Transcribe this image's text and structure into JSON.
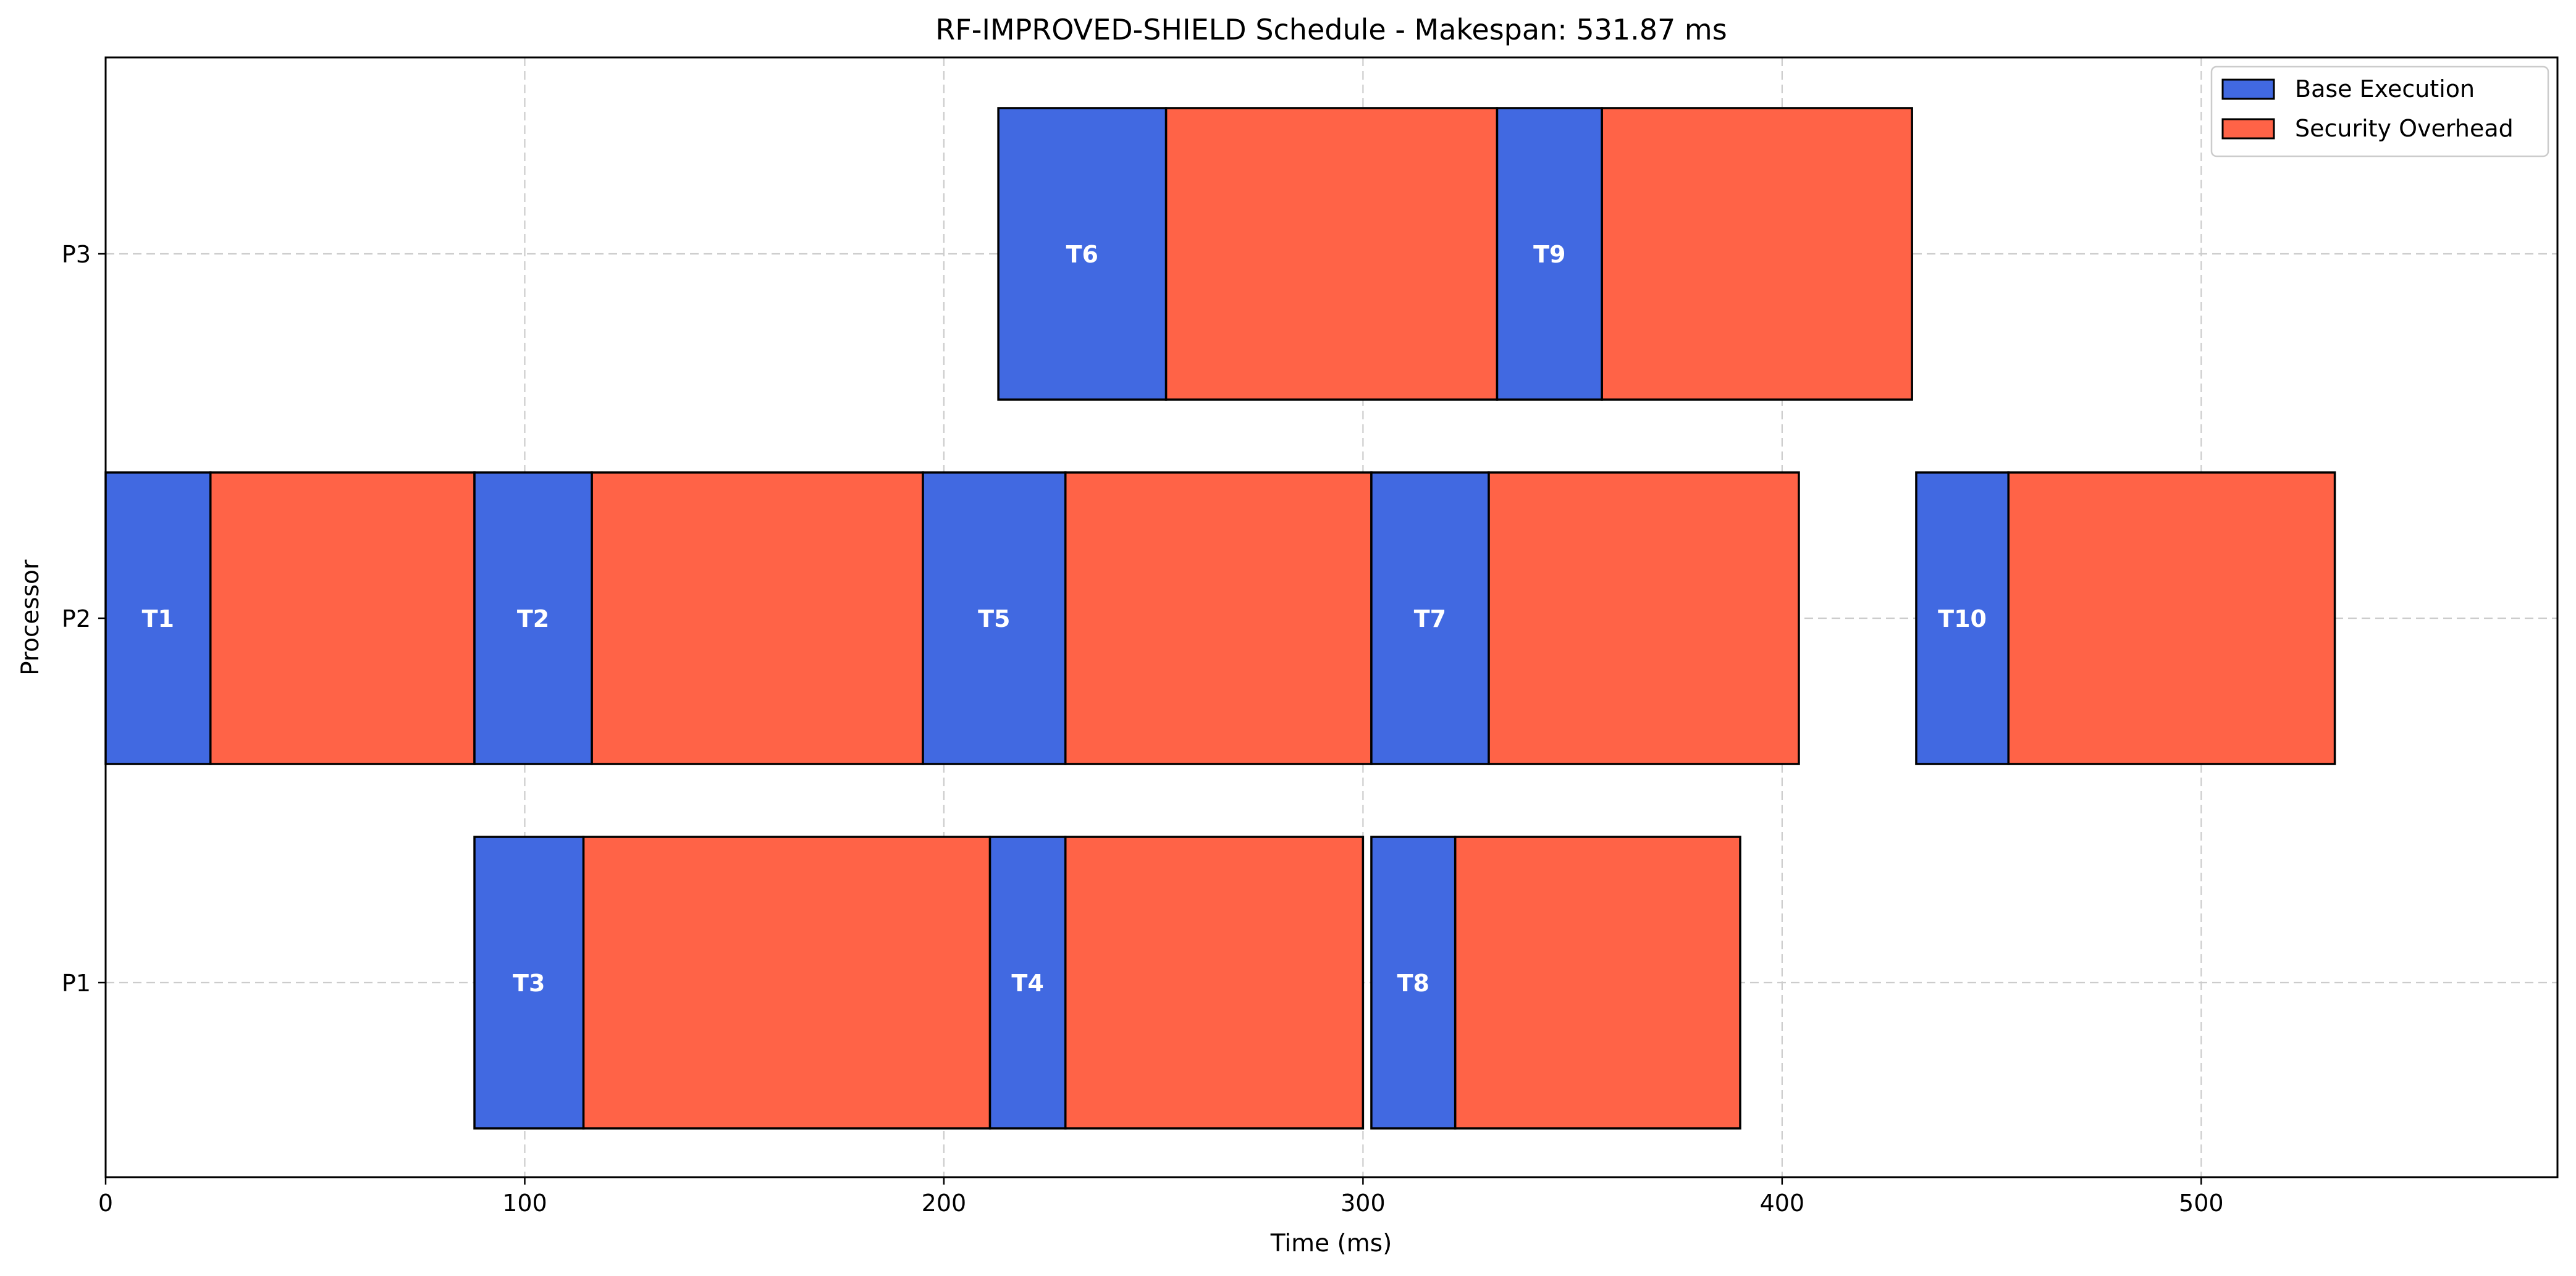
{
  "chart_data": {
    "type": "gantt",
    "title": "RF-IMPROVED-SHIELD Schedule - Makespan: 531.87 ms",
    "xlabel": "Time (ms)",
    "ylabel": "Processor",
    "xlim": [
      0,
      585
    ],
    "xticks": [
      0,
      100,
      200,
      300,
      400,
      500
    ],
    "processors": [
      "P1",
      "P2",
      "P3"
    ],
    "grid": true,
    "legend_position": "top-right",
    "legend": [
      {
        "label": "Base Execution",
        "color": "#4169E1"
      },
      {
        "label": "Security Overhead",
        "color": "#FF6347"
      }
    ],
    "tasks": [
      {
        "name": "T1",
        "processor": "P2",
        "start": 0,
        "base_end": 25,
        "end": 88
      },
      {
        "name": "T2",
        "processor": "P2",
        "start": 88,
        "base_end": 116,
        "end": 195
      },
      {
        "name": "T5",
        "processor": "P2",
        "start": 195,
        "base_end": 229,
        "end": 302
      },
      {
        "name": "T7",
        "processor": "P2",
        "start": 302,
        "base_end": 330,
        "end": 404
      },
      {
        "name": "T10",
        "processor": "P2",
        "start": 432,
        "base_end": 454,
        "end": 531.87
      },
      {
        "name": "T3",
        "processor": "P1",
        "start": 88,
        "base_end": 114,
        "end": 211
      },
      {
        "name": "T4",
        "processor": "P1",
        "start": 211,
        "base_end": 229,
        "end": 300
      },
      {
        "name": "T8",
        "processor": "P1",
        "start": 302,
        "base_end": 322,
        "end": 390
      },
      {
        "name": "T6",
        "processor": "P3",
        "start": 213,
        "base_end": 253,
        "end": 332
      },
      {
        "name": "T9",
        "processor": "P3",
        "start": 332,
        "base_end": 357,
        "end": 431
      }
    ]
  }
}
